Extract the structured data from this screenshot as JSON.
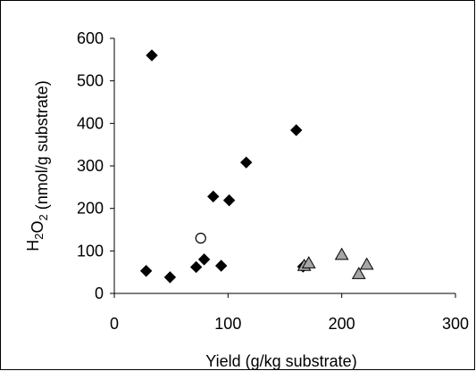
{
  "chart_data": {
    "type": "scatter",
    "title": "",
    "xlabel": "Yield (g/kg substrate)",
    "ylabel": "H2O2 (nmol/g substrate)",
    "xlim": [
      0,
      300
    ],
    "ylim": [
      0,
      600
    ],
    "x_ticks": [
      "0",
      "100",
      "200",
      "300"
    ],
    "y_ticks": [
      "0",
      "100",
      "200",
      "300",
      "400",
      "500",
      "600"
    ],
    "grid": false,
    "legend": "none",
    "series": [
      {
        "marker": "diamond",
        "color": "#000000",
        "points": [
          {
            "x": 28,
            "y": 53
          },
          {
            "x": 33,
            "y": 560
          },
          {
            "x": 49,
            "y": 38
          },
          {
            "x": 72,
            "y": 62
          },
          {
            "x": 79,
            "y": 80
          },
          {
            "x": 87,
            "y": 228
          },
          {
            "x": 94,
            "y": 65
          },
          {
            "x": 101,
            "y": 219
          },
          {
            "x": 116,
            "y": 308
          },
          {
            "x": 160,
            "y": 384
          },
          {
            "x": 166,
            "y": 63
          }
        ]
      },
      {
        "marker": "circle-open",
        "color": "#000000",
        "points": [
          {
            "x": 76,
            "y": 130
          }
        ]
      },
      {
        "marker": "triangle",
        "color": "#a6a6a6",
        "points": [
          {
            "x": 167,
            "y": 65
          },
          {
            "x": 171,
            "y": 71
          },
          {
            "x": 200,
            "y": 91
          },
          {
            "x": 215,
            "y": 46
          },
          {
            "x": 222,
            "y": 68
          }
        ]
      }
    ]
  }
}
